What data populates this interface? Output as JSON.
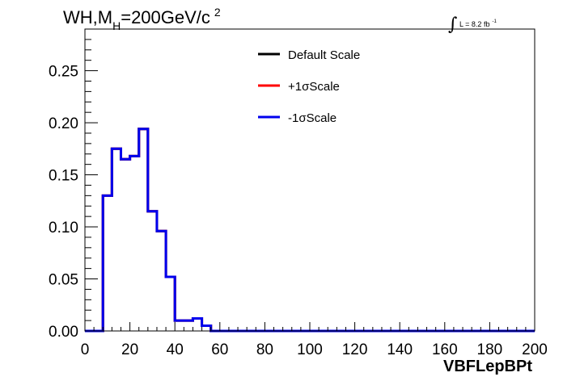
{
  "title": {
    "prefix": "WH,M",
    "subscript": "H",
    "value": "=200GeV/c",
    "superscript": "2"
  },
  "lumi": {
    "integral_symbol": "∫",
    "text": "L = 8.2 fb",
    "superscript": "-1"
  },
  "chart_data": {
    "type": "line",
    "style": "step-histogram",
    "xlabel": "VBFLepBPt",
    "ylabel": "",
    "xlim": [
      0,
      200
    ],
    "ylim": [
      0,
      0.29
    ],
    "x_ticks": [
      0,
      20,
      40,
      60,
      80,
      100,
      120,
      140,
      160,
      180,
      200
    ],
    "x_tick_labels": [
      "0",
      "20",
      "40",
      "60",
      "80",
      "100",
      "120",
      "140",
      "160",
      "180",
      "200"
    ],
    "y_ticks": [
      0,
      0.05,
      0.1,
      0.15,
      0.2,
      0.25
    ],
    "y_tick_labels": [
      "0.00",
      "0.05",
      "0.10",
      "0.15",
      "0.20",
      "0.25"
    ],
    "bin_edges": [
      0,
      4,
      8,
      12,
      16,
      20,
      24,
      28,
      32,
      36,
      40,
      44,
      48,
      52,
      56,
      60,
      64,
      68,
      72,
      76,
      80,
      84,
      88,
      92,
      96,
      100,
      104,
      108,
      112,
      116,
      120,
      124,
      128,
      132,
      136,
      140,
      144,
      148,
      152,
      156,
      160,
      164,
      168,
      172,
      176,
      180,
      184,
      188,
      192,
      196,
      200
    ],
    "series": [
      {
        "name": "Default Scale",
        "color": "#000000",
        "values": [
          0,
          0,
          0.13,
          0.175,
          0.165,
          0.168,
          0.194,
          0.115,
          0.096,
          0.052,
          0.01,
          0.01,
          0.012,
          0.005,
          0,
          0,
          0,
          0,
          0,
          0,
          0,
          0,
          0,
          0,
          0,
          0,
          0,
          0,
          0,
          0,
          0,
          0,
          0,
          0,
          0,
          0,
          0,
          0,
          0,
          0,
          0,
          0,
          0,
          0,
          0,
          0,
          0,
          0,
          0,
          0
        ]
      },
      {
        "name": "+1σScale",
        "color": "#ff0000",
        "values": [
          0,
          0,
          0.13,
          0.175,
          0.165,
          0.168,
          0.194,
          0.115,
          0.096,
          0.052,
          0.01,
          0.01,
          0.012,
          0.005,
          0,
          0,
          0,
          0,
          0,
          0,
          0,
          0,
          0,
          0,
          0,
          0,
          0,
          0,
          0,
          0,
          0,
          0,
          0,
          0,
          0,
          0,
          0,
          0,
          0,
          0,
          0,
          0,
          0,
          0,
          0,
          0,
          0,
          0,
          0,
          0
        ]
      },
      {
        "name": "-1σScale",
        "color": "#0000ee",
        "values": [
          0,
          0,
          0.13,
          0.175,
          0.165,
          0.168,
          0.194,
          0.115,
          0.096,
          0.052,
          0.01,
          0.01,
          0.012,
          0.005,
          0,
          0,
          0,
          0,
          0,
          0,
          0,
          0,
          0,
          0,
          0,
          0,
          0,
          0,
          0,
          0,
          0,
          0,
          0,
          0,
          0,
          0,
          0,
          0,
          0,
          0,
          0,
          0,
          0,
          0,
          0,
          0,
          0,
          0,
          0,
          0
        ]
      }
    ],
    "legend_position": "top-center",
    "grid": false
  }
}
